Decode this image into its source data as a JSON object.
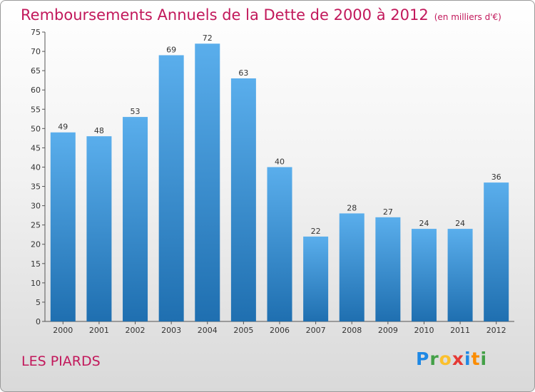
{
  "title": "Remboursements Annuels de la Dette de 2000 à 2012",
  "unit_note": "(en milliers d'€)",
  "commune": "LES PIARDS",
  "logo": {
    "letters": [
      "P",
      "r",
      "o",
      "x",
      "i",
      "t",
      "i"
    ],
    "colors": [
      "#1e88e5",
      "#43a047",
      "#fbc02d",
      "#e53935",
      "#1e88e5",
      "#fb8c00",
      "#43a047"
    ]
  },
  "colors": {
    "accent": "#c2185b",
    "bar_top": "#5aaeec",
    "bar_bottom": "#1f6fb0"
  },
  "chart_data": {
    "type": "bar",
    "categories": [
      "2000",
      "2001",
      "2002",
      "2003",
      "2004",
      "2005",
      "2006",
      "2007",
      "2008",
      "2009",
      "2010",
      "2011",
      "2012"
    ],
    "values": [
      49,
      48,
      53,
      69,
      72,
      63,
      40,
      22,
      28,
      27,
      24,
      24,
      36
    ],
    "ylim": [
      0,
      75
    ],
    "yticks": [
      0,
      5,
      10,
      15,
      20,
      25,
      30,
      35,
      40,
      45,
      50,
      55,
      60,
      65,
      70,
      75
    ],
    "grid": false,
    "xlabel": "",
    "ylabel": ""
  }
}
